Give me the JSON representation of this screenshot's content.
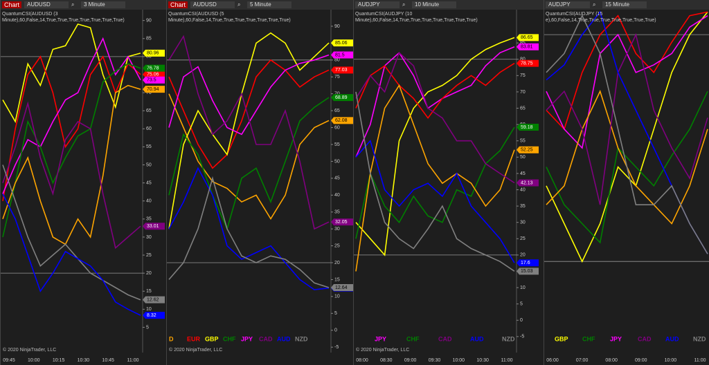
{
  "windows": [
    {
      "toolbar": {
        "button": "Chart",
        "instrument": "AUDUSD",
        "interval": "3 Minute"
      },
      "indicator": [
        "QuantumCSI(AUDUSD (3",
        "Minute),60,False,14,True,True,True,True,True,True,True)"
      ],
      "copyright": "© 2020 NinjaTrader, LLC",
      "chart": {
        "type": "line",
        "ylim": [
          -2,
          93
        ],
        "yticks": [
          5,
          10,
          15,
          20,
          25,
          30,
          35,
          40,
          45,
          50,
          55,
          60,
          65,
          70,
          75,
          80,
          85,
          90
        ],
        "levels": [
          80,
          20
        ],
        "price_markers": true,
        "legend": false,
        "xlabels": [
          "09:45",
          "10:00",
          "10:15",
          "10:30",
          "10:45",
          "11:00"
        ],
        "series": [
          {
            "color": "#ffff00",
            "values": [
              68,
              62,
              78,
              72,
              82,
              83,
              89,
              88,
              75,
              66,
              80,
              80.96
            ]
          },
          {
            "color": "#ff0000",
            "values": [
              40,
              60,
              75,
              80,
              70,
              55,
              60,
              75,
              80,
              70,
              78,
              75.06
            ]
          },
          {
            "color": "#ff00ff",
            "values": [
              42,
              50,
              57,
              55,
              62,
              68,
              70,
              78,
              85,
              75,
              80,
              73.5
            ]
          },
          {
            "color": "#008000",
            "values": [
              30,
              45,
              62,
              55,
              45,
              52,
              58,
              60,
              73,
              76,
              78,
              76.78
            ]
          },
          {
            "color": "#ffa500",
            "values": [
              35,
              45,
              52,
              40,
              30,
              28,
              35,
              30,
              47,
              70,
              72,
              70.94
            ]
          },
          {
            "color": "#800080",
            "values": [
              45,
              55,
              67,
              52,
              42,
              57,
              62,
              60,
              42,
              27,
              30,
              33.01
            ]
          },
          {
            "color": "#808080",
            "values": [
              50,
              40,
              30,
              22,
              25,
              28,
              24,
              20,
              18,
              16,
              14,
              12.62
            ]
          },
          {
            "color": "#0000ff",
            "values": [
              42,
              35,
              25,
              15,
              20,
              26,
              24,
              22,
              18,
              12,
              10,
              8.32
            ]
          }
        ]
      }
    },
    {
      "toolbar": {
        "button": "Chart",
        "instrument": "AUDUSD",
        "interval": "5 Minute"
      },
      "indicator": [
        "QuantumCSI(AUDUSD (5",
        "Minute),60,False,14,True,True,True,True,True,True,True)"
      ],
      "copyright": "© 2020 NinjaTrader, LLC",
      "chart": {
        "type": "line",
        "ylim": [
          -6.6,
          94.9
        ],
        "yticks": [
          -5,
          0,
          5,
          10,
          15,
          20,
          25,
          30,
          35,
          40,
          45,
          50,
          55,
          60,
          65,
          70,
          75,
          80,
          85,
          90
        ],
        "levels": [
          80,
          20
        ],
        "price_markers": true,
        "legend": true,
        "xlabels": [],
        "series": [
          {
            "name": "D",
            "color": "#ffa500",
            "values": [
              70,
              60,
              50,
              44,
              42,
              38,
              40,
              33,
              40,
              55,
              60,
              62.08
            ]
          },
          {
            "name": "EUR",
            "color": "#ff0000",
            "values": [
              75,
              65,
              55,
              48,
              52,
              62,
              75,
              80,
              77,
              72,
              75,
              77.03
            ]
          },
          {
            "name": "GBP",
            "color": "#ffff00",
            "values": [
              30,
              55,
              65,
              58,
              52,
              70,
              85,
              88,
              85,
              77,
              81,
              85.06
            ]
          },
          {
            "name": "CHF",
            "color": "#008000",
            "values": [
              40,
              58,
              52,
              40,
              30,
              45,
              48,
              38,
              50,
              62,
              66,
              68.89
            ]
          },
          {
            "name": "JPY",
            "color": "#ff00ff",
            "values": [
              60,
              75,
              78,
              68,
              60,
              58,
              65,
              72,
              77,
              79,
              80,
              81.5
            ]
          },
          {
            "name": "CAD",
            "color": "#800080",
            "values": [
              80,
              87,
              70,
              58,
              62,
              70,
              55,
              55,
              65,
              50,
              30,
              32.05
            ]
          },
          {
            "name": "AUD",
            "color": "#0000ff",
            "values": [
              30,
              38,
              48,
              40,
              25,
              21,
              23,
              25,
              20,
              15,
              12,
              12.5
            ]
          },
          {
            "name": "NZD",
            "color": "#808080",
            "values": [
              15,
              20,
              30,
              45,
              30,
              22,
              20,
              22,
              21,
              18,
              14,
              12.64
            ]
          }
        ]
      }
    },
    {
      "toolbar": {
        "instrument": "AUDJPY",
        "interval": "10 Minute"
      },
      "indicator": [
        "QuantumCSI(AUDJPY (10",
        "Minute),60,False,14,True,True,True,True,True,True,True)"
      ],
      "copyright": "© 2020 NinjaTrader, LLC",
      "chart": {
        "type": "line",
        "ylim": [
          -9.9,
          95.2
        ],
        "yticks": [
          -5,
          0,
          5,
          10,
          15,
          20,
          25,
          30,
          35,
          40,
          45,
          50,
          55,
          60,
          65,
          70,
          75,
          80,
          85
        ],
        "levels": [
          80,
          20
        ],
        "price_markers": true,
        "legend": true,
        "xlabels": [
          "08:00",
          "08:30",
          "09:00",
          "09:30",
          "10:00",
          "10:30",
          "11:00"
        ],
        "series": [
          {
            "color": "#ffff00",
            "values": [
              30,
              25,
              20,
              55,
              65,
              70,
              72,
              75,
              80,
              83,
              85,
              86.65
            ]
          },
          {
            "color": "#ff00ff",
            "name": "JPY",
            "values": [
              50,
              60,
              78,
              82,
              75,
              65,
              68,
              70,
              72,
              78,
              82,
              83.81
            ]
          },
          {
            "color": "#ff0000",
            "values": [
              65,
              75,
              78,
              72,
              68,
              62,
              68,
              72,
              75,
              72,
              76,
              78.75
            ]
          },
          {
            "color": "#008000",
            "name": "CHF",
            "values": [
              25,
              45,
              35,
              30,
              38,
              32,
              30,
              40,
              38,
              48,
              52,
              59.18
            ]
          },
          {
            "color": "#ffa500",
            "values": [
              15,
              45,
              65,
              72,
              60,
              48,
              42,
              45,
              42,
              35,
              40,
              52.25
            ]
          },
          {
            "color": "#800080",
            "name": "CAD",
            "values": [
              68,
              75,
              70,
              82,
              78,
              65,
              62,
              55,
              55,
              48,
              45,
              42.13
            ]
          },
          {
            "color": "#0000ff",
            "name": "AUD",
            "values": [
              50,
              55,
              40,
              35,
              40,
              42,
              38,
              45,
              35,
              30,
              25,
              17.6
            ]
          },
          {
            "color": "#808080",
            "name": "NZD",
            "values": [
              70,
              45,
              30,
              25,
              22,
              28,
              35,
              25,
              22,
              20,
              18,
              15.03
            ]
          }
        ]
      }
    },
    {
      "toolbar": {
        "instrument": "AUDJPY",
        "interval": "15 Minute"
      },
      "indicator": [
        "QuantumCSI(AUDJPY (15",
        "e),60,False,14,True,True,True,True,True,True,True)"
      ],
      "chart": {
        "type": "line",
        "ylim": [
          -4.1,
          86.6
        ],
        "levels": [
          80,
          20
        ],
        "price_markers": false,
        "legend": true,
        "xlabels": [
          "06:00",
          "07:00",
          "08:00",
          "09:00",
          "10:00",
          "11:00"
        ],
        "series": [
          {
            "color": "#ffff00",
            "name": "GBP",
            "values": [
              40,
              30,
              20,
              30,
              45,
              40,
              55,
              70,
              80,
              86
            ]
          },
          {
            "color": "#ff0000",
            "values": [
              60,
              55,
              70,
              80,
              85,
              75,
              70,
              78,
              85,
              86
            ]
          },
          {
            "color": "#008000",
            "name": "CHF",
            "values": [
              45,
              35,
              30,
              25,
              50,
              45,
              40,
              48,
              55,
              65
            ]
          },
          {
            "color": "#ff00ff",
            "name": "JPY",
            "values": [
              65,
              55,
              50,
              75,
              80,
              70,
              72,
              75,
              82,
              85
            ]
          },
          {
            "color": "#ffa500",
            "values": [
              35,
              40,
              55,
              65,
              50,
              40,
              35,
              30,
              40,
              55
            ]
          },
          {
            "color": "#800080",
            "name": "CAD",
            "values": [
              60,
              65,
              55,
              35,
              70,
              80,
              60,
              50,
              42,
              58
            ]
          },
          {
            "color": "#0000ff",
            "name": "AUD",
            "values": [
              68,
              72,
              80,
              86,
              70,
              60,
              50,
              40,
              30,
              22
            ]
          },
          {
            "color": "#808080",
            "name": "NZD",
            "values": [
              70,
              75,
              85,
              75,
              55,
              35,
              35,
              40,
              30,
              22
            ]
          }
        ]
      }
    }
  ]
}
